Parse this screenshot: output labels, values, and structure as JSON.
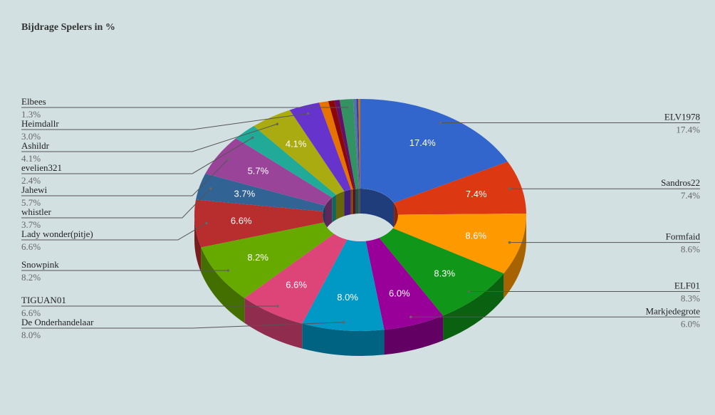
{
  "chart_data": {
    "type": "pie3d-donut",
    "title": "Bijdrage Spelers in %",
    "categories": [
      "ELV1978",
      "Sandros22",
      "Formfaid",
      "ELF01",
      "Markjedegrote",
      "De Onderhandelaar",
      "TIGUAN01",
      "Snowpink",
      "Lady wonder(pitje)",
      "whistler",
      "Jahewi",
      "evelien321",
      "Ashildr",
      "Heimdallr",
      null,
      null,
      null,
      "Elbees",
      null,
      null,
      null
    ],
    "values": [
      17.4,
      7.4,
      8.6,
      8.3,
      6.0,
      8.0,
      6.6,
      8.2,
      6.6,
      3.7,
      5.7,
      2.4,
      4.1,
      3.0,
      0.9,
      0.6,
      0.5,
      1.3,
      0.3,
      0.2,
      0.2
    ],
    "value_labels": [
      "17.4%",
      "7.4%",
      "8.6%",
      "8.3%",
      "6.0%",
      "8.0%",
      "6.6%",
      "8.2%",
      "6.6%",
      "3.7%",
      "5.7%",
      "2.4%",
      "4.1%",
      "3.0%",
      null,
      null,
      null,
      "1.3%",
      null,
      null,
      null
    ],
    "colors": [
      "#3366cc",
      "#dc3912",
      "#ff9900",
      "#109618",
      "#990099",
      "#0099c6",
      "#dd4477",
      "#66aa00",
      "#b82e2e",
      "#316395",
      "#994499",
      "#22aa99",
      "#aaaa11",
      "#6633cc",
      "#e67300",
      "#8b0707",
      "#651067",
      "#329262",
      "#5574a6",
      "#3b3eac",
      "#b77322"
    ]
  }
}
